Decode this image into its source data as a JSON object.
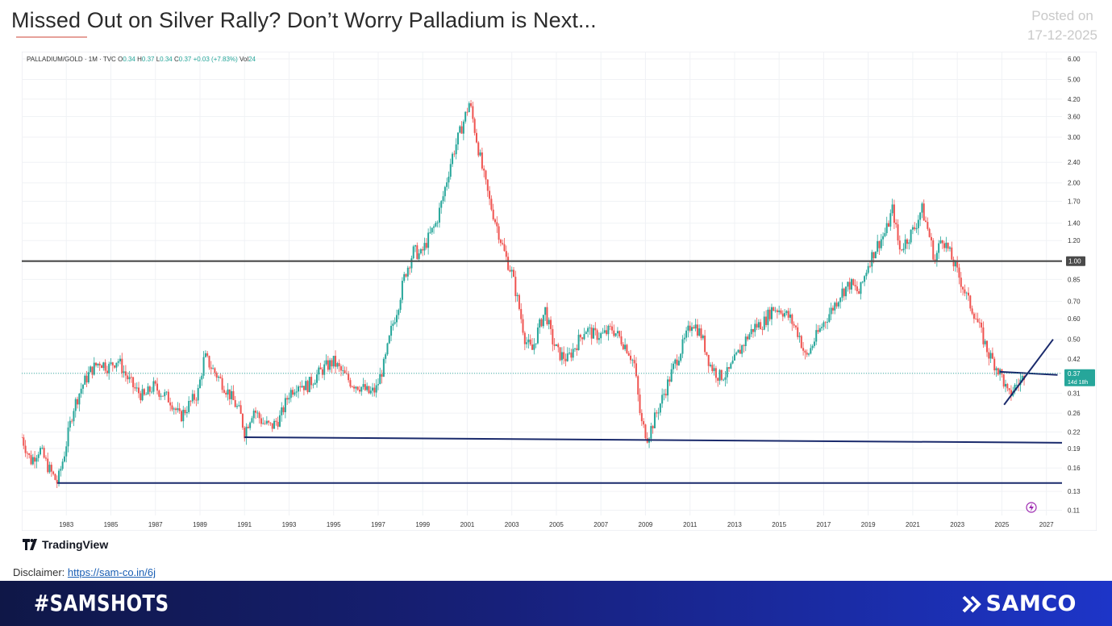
{
  "header": {
    "title": "Missed Out on Silver Rally? Don’t Worry Palladium is Next...",
    "posted_label": "Posted on",
    "posted_date": "17-12-2025"
  },
  "ohlc": {
    "symbol": "PALLADIUM/GOLD · 1M · TVC",
    "o_label": "O",
    "o": "0.34",
    "h_label": "H",
    "h": "0.37",
    "l_label": "L",
    "l": "0.34",
    "c_label": "C",
    "c": "0.37",
    "change": "+0.03 (+7.83%)",
    "vol_label": "Vol",
    "vol": "24"
  },
  "tradingview": {
    "label": "TradingView"
  },
  "disclaimer": {
    "label": "Disclaimer:",
    "link_text": "https://sam-co.in/6j"
  },
  "footer": {
    "hashtag": "#SAMSHOTS",
    "brand": "SAMCO"
  },
  "colors": {
    "up": "#26a69a",
    "down": "#ef5350",
    "trendline": "#1a2a6c",
    "hline": "#4a4a4a",
    "price_tag": "#26a69a",
    "footer_start": "#0f1747",
    "footer_end": "#1d35c8"
  },
  "chart_data": {
    "type": "candlestick",
    "symbol": "PALLADIUM/GOLD",
    "interval": "1M",
    "yscale": "log",
    "ylim": [
      0.1,
      6.5
    ],
    "xlim": [
      1981.0,
      2027.7
    ],
    "grid": true,
    "y_ticks": [
      "6.00",
      "5.00",
      "4.20",
      "3.60",
      "3.00",
      "2.40",
      "2.00",
      "1.70",
      "1.40",
      "1.20",
      "1.00",
      "0.85",
      "0.70",
      "0.60",
      "0.50",
      "0.42",
      "0.37",
      "0.31",
      "0.26",
      "0.22",
      "0.19",
      "0.16",
      "0.13",
      "0.11"
    ],
    "x_ticks": [
      "1983",
      "1985",
      "1987",
      "1989",
      "1991",
      "1993",
      "1995",
      "1997",
      "1999",
      "2001",
      "2003",
      "2005",
      "2007",
      "2009",
      "2011",
      "2013",
      "2015",
      "2017",
      "2019",
      "2021",
      "2023",
      "2025",
      "2027"
    ],
    "last_price_label": "0.37",
    "countdown_label": "14d 18h",
    "hline_label": "1.00",
    "price_path": [
      [
        1981.0,
        0.21
      ],
      [
        1981.4,
        0.17
      ],
      [
        1981.8,
        0.19
      ],
      [
        1982.2,
        0.16
      ],
      [
        1982.6,
        0.14
      ],
      [
        1982.9,
        0.18
      ],
      [
        1983.3,
        0.27
      ],
      [
        1983.7,
        0.33
      ],
      [
        1984.1,
        0.38
      ],
      [
        1984.5,
        0.41
      ],
      [
        1984.9,
        0.39
      ],
      [
        1985.3,
        0.42
      ],
      [
        1985.7,
        0.36
      ],
      [
        1986.1,
        0.32
      ],
      [
        1986.5,
        0.3
      ],
      [
        1986.9,
        0.33
      ],
      [
        1987.3,
        0.31
      ],
      [
        1987.7,
        0.29
      ],
      [
        1988.1,
        0.25
      ],
      [
        1988.5,
        0.28
      ],
      [
        1988.9,
        0.31
      ],
      [
        1989.2,
        0.43
      ],
      [
        1989.6,
        0.38
      ],
      [
        1990.0,
        0.34
      ],
      [
        1990.4,
        0.3
      ],
      [
        1990.8,
        0.26
      ],
      [
        1991.0,
        0.22
      ],
      [
        1991.4,
        0.27
      ],
      [
        1991.8,
        0.24
      ],
      [
        1992.2,
        0.23
      ],
      [
        1992.6,
        0.25
      ],
      [
        1993.0,
        0.31
      ],
      [
        1993.4,
        0.34
      ],
      [
        1993.8,
        0.33
      ],
      [
        1994.2,
        0.36
      ],
      [
        1994.6,
        0.39
      ],
      [
        1995.0,
        0.41
      ],
      [
        1995.4,
        0.37
      ],
      [
        1995.8,
        0.34
      ],
      [
        1996.2,
        0.33
      ],
      [
        1996.6,
        0.31
      ],
      [
        1996.9,
        0.32
      ],
      [
        1997.3,
        0.41
      ],
      [
        1997.6,
        0.55
      ],
      [
        1997.9,
        0.68
      ],
      [
        1998.2,
        0.89
      ],
      [
        1998.6,
        1.1
      ],
      [
        1998.9,
        1.05
      ],
      [
        1999.2,
        1.2
      ],
      [
        1999.6,
        1.4
      ],
      [
        1999.9,
        1.75
      ],
      [
        2000.3,
        2.5
      ],
      [
        2000.6,
        3.0
      ],
      [
        2000.9,
        3.6
      ],
      [
        2001.1,
        4.1
      ],
      [
        2001.4,
        3.0
      ],
      [
        2001.7,
        2.2
      ],
      [
        2002.0,
        1.7
      ],
      [
        2002.4,
        1.3
      ],
      [
        2002.7,
        1.05
      ],
      [
        2003.0,
        0.9
      ],
      [
        2003.3,
        0.68
      ],
      [
        2003.6,
        0.5
      ],
      [
        2003.9,
        0.45
      ],
      [
        2004.2,
        0.55
      ],
      [
        2004.5,
        0.65
      ],
      [
        2004.8,
        0.5
      ],
      [
        2005.1,
        0.44
      ],
      [
        2005.5,
        0.42
      ],
      [
        2005.9,
        0.48
      ],
      [
        2006.3,
        0.55
      ],
      [
        2006.7,
        0.52
      ],
      [
        2007.1,
        0.52
      ],
      [
        2007.5,
        0.55
      ],
      [
        2007.9,
        0.5
      ],
      [
        2008.2,
        0.46
      ],
      [
        2008.5,
        0.4
      ],
      [
        2008.8,
        0.24
      ],
      [
        2009.1,
        0.21
      ],
      [
        2009.5,
        0.26
      ],
      [
        2009.9,
        0.32
      ],
      [
        2010.3,
        0.4
      ],
      [
        2010.7,
        0.48
      ],
      [
        2011.1,
        0.59
      ],
      [
        2011.5,
        0.52
      ],
      [
        2011.9,
        0.4
      ],
      [
        2012.3,
        0.36
      ],
      [
        2012.7,
        0.37
      ],
      [
        2013.1,
        0.43
      ],
      [
        2013.5,
        0.5
      ],
      [
        2013.9,
        0.56
      ],
      [
        2014.3,
        0.58
      ],
      [
        2014.7,
        0.66
      ],
      [
        2015.1,
        0.65
      ],
      [
        2015.5,
        0.6
      ],
      [
        2015.9,
        0.52
      ],
      [
        2016.2,
        0.42
      ],
      [
        2016.6,
        0.5
      ],
      [
        2017.0,
        0.58
      ],
      [
        2017.4,
        0.66
      ],
      [
        2017.8,
        0.76
      ],
      [
        2018.2,
        0.82
      ],
      [
        2018.6,
        0.75
      ],
      [
        2019.0,
        0.98
      ],
      [
        2019.4,
        1.15
      ],
      [
        2019.8,
        1.3
      ],
      [
        2020.1,
        1.6
      ],
      [
        2020.4,
        1.1
      ],
      [
        2020.7,
        1.2
      ],
      [
        2021.1,
        1.35
      ],
      [
        2021.4,
        1.6
      ],
      [
        2021.7,
        1.3
      ],
      [
        2022.0,
        1.0
      ],
      [
        2022.3,
        1.25
      ],
      [
        2022.6,
        1.1
      ],
      [
        2022.9,
        0.95
      ],
      [
        2023.2,
        0.82
      ],
      [
        2023.5,
        0.7
      ],
      [
        2023.8,
        0.62
      ],
      [
        2024.1,
        0.52
      ],
      [
        2024.4,
        0.44
      ],
      [
        2024.7,
        0.4
      ],
      [
        2025.0,
        0.36
      ],
      [
        2025.3,
        0.3
      ],
      [
        2025.6,
        0.33
      ],
      [
        2025.9,
        0.35
      ],
      [
        2026.0,
        0.37
      ]
    ],
    "trendlines": [
      {
        "name": "support-1982",
        "points": [
          [
            1982.6,
            0.14
          ],
          [
            2027.7,
            0.14
          ]
        ]
      },
      {
        "name": "support-1991-2009",
        "points": [
          [
            1991.0,
            0.21
          ],
          [
            2027.7,
            0.2
          ]
        ]
      },
      {
        "name": "hline-1.00",
        "points": [
          [
            1981.0,
            1.0
          ],
          [
            2027.7,
            1.0
          ]
        ]
      },
      {
        "name": "rising-2025",
        "points": [
          [
            2025.1,
            0.28
          ],
          [
            2027.3,
            0.5
          ]
        ]
      },
      {
        "name": "falling-2025",
        "points": [
          [
            2024.9,
            0.375
          ],
          [
            2027.5,
            0.365
          ]
        ]
      }
    ]
  }
}
